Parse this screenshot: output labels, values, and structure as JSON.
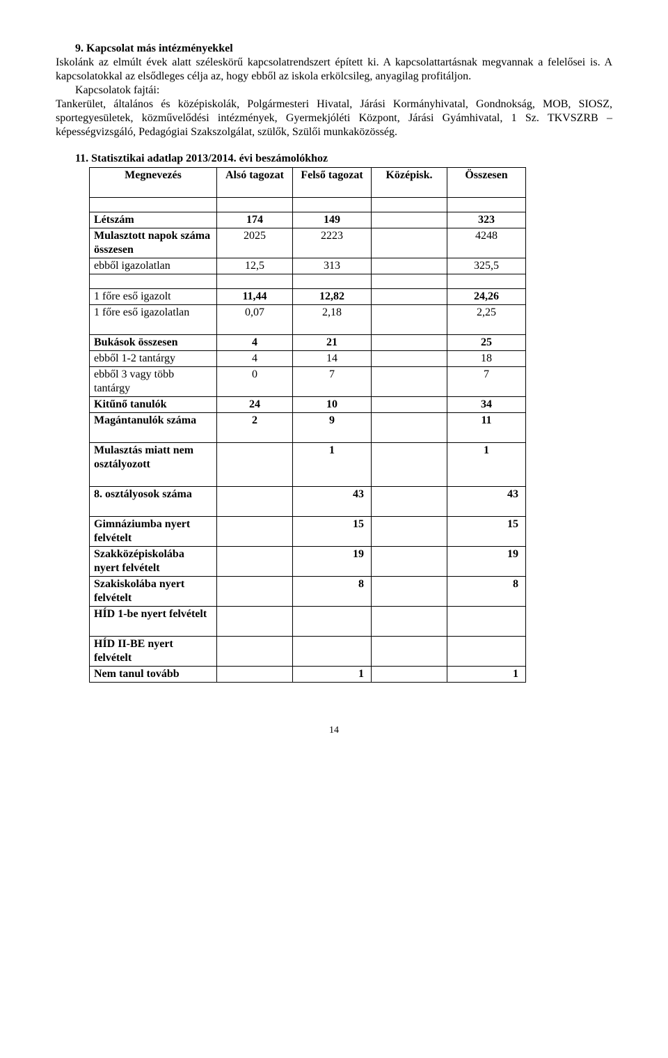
{
  "section9": {
    "title": "9.  Kapcsolat más intézményekkel",
    "para1a": "Iskolánk az elmúlt évek alatt széleskörű kapcsolatrendszert épített ki. A kapcsolattartásnak megvannak a felelősei is. A kapcsolatokkal az elsődleges célja az, hogy ebből az iskola erkölcsileg, anyagilag profitáljon.",
    "para1b": "Kapcsolatok fajtái:",
    "para2": "Tankerület, általános és középiskolák, Polgármesteri Hivatal, Járási Kormányhivatal, Gondnokság, MOB, SIOSZ, sportegyesületek, közművelődési intézmények, Gyermekjóléti Központ, Járási Gyámhivatal, 1 Sz. TKVSZRB – képességvizsgáló, Pedagógiai Szakszolgálat, szülők, Szülői munkaközösség."
  },
  "stats": {
    "title": "11. Statisztikai adatlap 2013/2014. évi beszámolókhoz",
    "headers": {
      "name": "Megnevezés",
      "lower": "Alsó tagozat",
      "upper": "Felső tagozat",
      "mid": "Középisk.",
      "total": "Összesen"
    },
    "rows": [
      {
        "label": "Létszám",
        "lower": "174",
        "upper": "149",
        "mid": "",
        "total": "323"
      },
      {
        "label": "Mulasztott napok száma összesen",
        "lower": "2025",
        "upper": "2223",
        "mid": "",
        "total": "4248"
      },
      {
        "label": "  ebből igazolatlan",
        "lower": "12,5",
        "upper": "313",
        "mid": "",
        "total": "325,5"
      },
      {
        "label": "  1 főre eső igazolt",
        "lower": "11,44",
        "upper": "12,82",
        "mid": "",
        "total": "24,26"
      },
      {
        "label": "  1 főre eső igazolatlan",
        "lower": "0,07",
        "upper": "2,18",
        "mid": "",
        "total": "2,25"
      },
      {
        "label": "Bukások összesen",
        "lower": "4",
        "upper": "21",
        "mid": "",
        "total": "25"
      },
      {
        "label": "ebből 1-2 tantárgy",
        "lower": "4",
        "upper": "14",
        "mid": "",
        "total": "18"
      },
      {
        "label": "ebből 3 vagy több tantárgy",
        "lower": "0",
        "upper": "7",
        "mid": "",
        "total": "7"
      },
      {
        "label": "Kitűnő tanulók",
        "lower": "24",
        "upper": "10",
        "mid": "",
        "total": "34"
      },
      {
        "label": "Magántanulók száma",
        "lower": "2",
        "upper": "9",
        "mid": "",
        "total": "11"
      },
      {
        "label": "Mulasztás miatt nem osztályozott",
        "lower": "",
        "upper": "1",
        "mid": "",
        "total": "1"
      },
      {
        "label": "8. osztályosok száma",
        "lower": "",
        "upper": "43",
        "mid": "",
        "total": "43"
      },
      {
        "label": "Gimnáziumba nyert felvételt",
        "lower": "",
        "upper": "15",
        "mid": "",
        "total": "15"
      },
      {
        "label": "Szakközépiskolába nyert felvételt",
        "lower": "",
        "upper": "19",
        "mid": "",
        "total": "19"
      },
      {
        "label": "Szakiskolába nyert felvételt",
        "lower": "",
        "upper": "8",
        "mid": "",
        "total": "8"
      },
      {
        "label": "HÍD 1-be nyert felvételt",
        "lower": "",
        "upper": "",
        "mid": "",
        "total": ""
      },
      {
        "label": "HÍD II-BE nyert felvételt",
        "lower": "",
        "upper": "",
        "mid": "",
        "total": ""
      },
      {
        "label": "Nem tanul tovább",
        "lower": "",
        "upper": "1",
        "mid": "",
        "total": "1"
      }
    ]
  },
  "page_number": "14"
}
